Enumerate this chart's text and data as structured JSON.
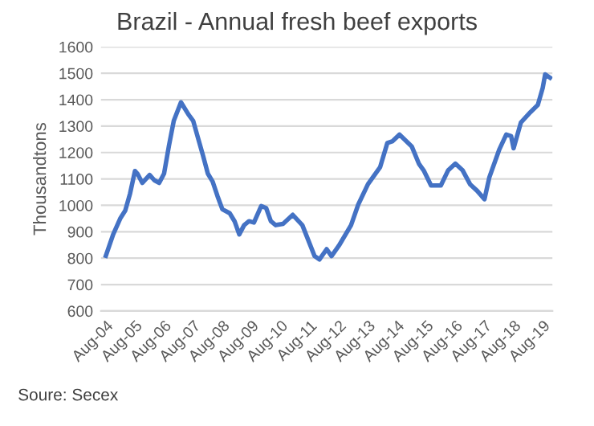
{
  "chart_data": {
    "type": "line",
    "title": "Brazil - Annual fresh beef exports",
    "ylabel": "Thousandtons",
    "x": [
      "2004-08",
      "2004-11",
      "2005-02",
      "2005-04",
      "2005-06",
      "2005-08",
      "2005-09",
      "2005-11",
      "2006-02",
      "2006-04",
      "2006-06",
      "2006-08",
      "2006-10",
      "2006-12",
      "2007-03",
      "2007-06",
      "2007-08",
      "2007-10",
      "2007-12",
      "2008-02",
      "2008-04",
      "2008-06",
      "2008-08",
      "2008-11",
      "2009-01",
      "2009-03",
      "2009-05",
      "2009-07",
      "2009-09",
      "2009-12",
      "2010-02",
      "2010-04",
      "2010-06",
      "2010-09",
      "2011-01",
      "2011-05",
      "2011-10",
      "2011-12",
      "2012-03",
      "2012-05",
      "2012-08",
      "2013-01",
      "2013-04",
      "2013-08",
      "2014-01",
      "2014-04",
      "2014-06",
      "2014-09",
      "2015-02",
      "2015-05",
      "2015-07",
      "2015-10",
      "2016-02",
      "2016-05",
      "2016-08",
      "2016-11",
      "2017-02",
      "2017-05",
      "2017-08",
      "2017-10",
      "2018-02",
      "2018-05",
      "2018-07",
      "2018-08",
      "2018-11",
      "2019-03",
      "2019-06",
      "2019-08",
      "2019-09",
      "2019-11"
    ],
    "series": [
      {
        "color": "#4472c4",
        "values": [
          809,
          890,
          952,
          980,
          1045,
          1130,
          1120,
          1085,
          1115,
          1095,
          1085,
          1120,
          1225,
          1320,
          1390,
          1345,
          1320,
          1255,
          1190,
          1120,
          1090,
          1035,
          985,
          970,
          940,
          890,
          925,
          940,
          935,
          997,
          990,
          940,
          925,
          930,
          964,
          925,
          808,
          795,
          834,
          808,
          847,
          925,
          1003,
          1080,
          1145,
          1236,
          1242,
          1268,
          1223,
          1158,
          1132,
          1075,
          1075,
          1132,
          1158,
          1132,
          1080,
          1055,
          1023,
          1106,
          1210,
          1268,
          1262,
          1216,
          1314,
          1353,
          1380,
          1444,
          1496,
          1483
        ]
      }
    ],
    "xlim": [
      "2004-06",
      "2019-12"
    ],
    "xticks": [
      {
        "value": "2004-08",
        "label": "Aug-04"
      },
      {
        "value": "2005-08",
        "label": "Aug-05"
      },
      {
        "value": "2006-08",
        "label": "Aug-06"
      },
      {
        "value": "2007-08",
        "label": "Aug-07"
      },
      {
        "value": "2008-08",
        "label": "Aug-08"
      },
      {
        "value": "2009-08",
        "label": "Aug-09"
      },
      {
        "value": "2010-08",
        "label": "Aug-10"
      },
      {
        "value": "2011-08",
        "label": "Aug-11"
      },
      {
        "value": "2012-08",
        "label": "Aug-12"
      },
      {
        "value": "2013-08",
        "label": "Aug-13"
      },
      {
        "value": "2014-08",
        "label": "Aug-14"
      },
      {
        "value": "2015-08",
        "label": "Aug-15"
      },
      {
        "value": "2016-08",
        "label": "Aug-16"
      },
      {
        "value": "2017-08",
        "label": "Aug-17"
      },
      {
        "value": "2018-08",
        "label": "Aug-18"
      },
      {
        "value": "2019-08",
        "label": "Aug-19"
      }
    ],
    "ylim": [
      600,
      1600
    ],
    "yticks": [
      600,
      700,
      800,
      900,
      1000,
      1100,
      1200,
      1300,
      1400,
      1500,
      1600
    ],
    "grid": "y",
    "annotations": [
      "Soure: Secex"
    ]
  }
}
